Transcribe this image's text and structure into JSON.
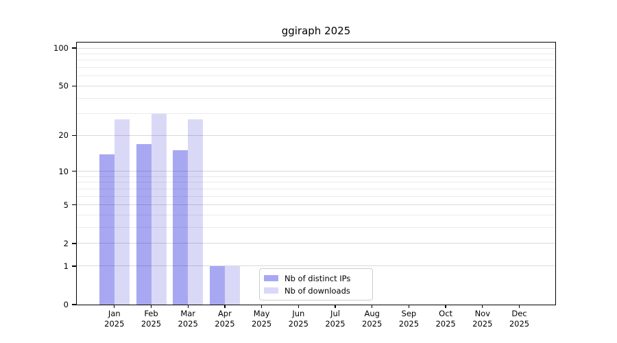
{
  "title": "ggiraph 2025",
  "chart_data": {
    "type": "bar",
    "title": "ggiraph 2025",
    "months": [
      "Jan",
      "Feb",
      "Mar",
      "Apr",
      "May",
      "Jun",
      "Jul",
      "Aug",
      "Sep",
      "Oct",
      "Nov",
      "Dec"
    ],
    "year": "2025",
    "series": [
      {
        "name": "Nb of distinct IPs",
        "color": "#a8a8f2",
        "values": [
          14,
          17,
          15,
          1,
          0,
          0,
          0,
          0,
          0,
          0,
          0,
          0
        ]
      },
      {
        "name": "Nb of downloads",
        "color": "#d9d9f7",
        "values": [
          27,
          30,
          27,
          1,
          0,
          0,
          0,
          0,
          0,
          0,
          0,
          0
        ]
      }
    ],
    "yscale": "log1p",
    "ylim": [
      0,
      100
    ],
    "y_major_ticks": [
      0,
      1,
      2,
      5,
      10,
      20,
      50,
      100
    ],
    "y_minor_gridlines": [
      3,
      4,
      6,
      7,
      8,
      9,
      30,
      40,
      60,
      70,
      80,
      90
    ],
    "grid": "horizontal, major and minor, drawn above bars",
    "legend_position": "lower center",
    "xlabel": "",
    "ylabel": ""
  },
  "colors": {
    "series_ips": "#a8a8f2",
    "series_downloads": "#d9d9f7",
    "grid_major": "rgba(0,0,0,0.15)",
    "grid_minor": "rgba(0,0,0,0.08)",
    "spine": "#000000",
    "legend_border": "#cccccc",
    "background": "#ffffff"
  }
}
